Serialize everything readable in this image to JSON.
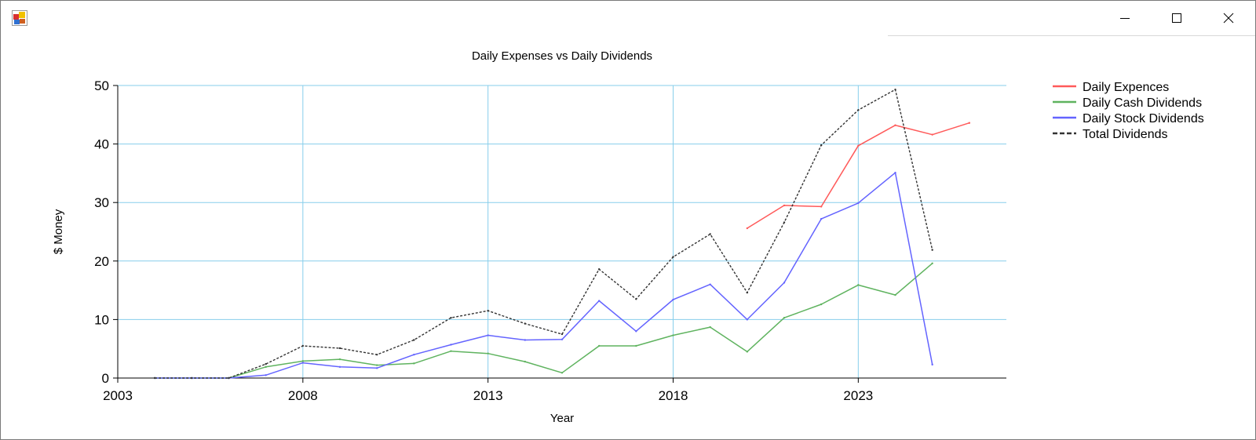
{
  "window": {
    "icon": "app-icon",
    "controls": [
      "minimize-icon",
      "maximize-icon",
      "close-icon"
    ]
  },
  "chart_data": {
    "type": "line",
    "title": "Daily Expenses vs Daily Dividends",
    "xlabel": "Year",
    "ylabel": "$ Money",
    "xlim": [
      2003,
      2027
    ],
    "ylim": [
      0,
      50
    ],
    "xticks": [
      2003,
      2008,
      2013,
      2018,
      2023
    ],
    "yticks": [
      0,
      10,
      20,
      30,
      40,
      50
    ],
    "grid": true,
    "grid_color": "#87ceeb",
    "legend_position": "top-right",
    "series": [
      {
        "name": "Daily Expences",
        "color": "#ff5a5a",
        "dashed": false,
        "x": [
          2020,
          2021,
          2022,
          2023,
          2024,
          2025,
          2026
        ],
        "values": [
          25.6,
          29.5,
          29.3,
          39.7,
          43.2,
          41.6,
          43.6
        ]
      },
      {
        "name": "Daily Cash Dividends",
        "color": "#5fb35f",
        "dashed": false,
        "x": [
          2004,
          2005,
          2006,
          2007,
          2008,
          2009,
          2010,
          2011,
          2012,
          2013,
          2014,
          2015,
          2016,
          2017,
          2018,
          2019,
          2020,
          2021,
          2022,
          2023,
          2024,
          2025
        ],
        "values": [
          0,
          0,
          0,
          1.9,
          2.9,
          3.2,
          2.2,
          2.5,
          4.6,
          4.2,
          2.8,
          0.9,
          5.5,
          5.5,
          7.3,
          8.7,
          4.5,
          10.3,
          12.6,
          15.9,
          14.2,
          19.6
        ]
      },
      {
        "name": "Daily Stock Dividends",
        "color": "#6464ff",
        "dashed": false,
        "x": [
          2004,
          2005,
          2006,
          2007,
          2008,
          2009,
          2010,
          2011,
          2012,
          2013,
          2014,
          2015,
          2016,
          2017,
          2018,
          2019,
          2020,
          2021,
          2022,
          2023,
          2024,
          2025
        ],
        "values": [
          0,
          0,
          0,
          0.5,
          2.6,
          1.9,
          1.7,
          4.0,
          5.7,
          7.3,
          6.5,
          6.6,
          13.2,
          8.0,
          13.4,
          16.0,
          10.0,
          16.3,
          27.2,
          29.9,
          35.1,
          2.3
        ]
      },
      {
        "name": "Total Dividends",
        "color": "#333333",
        "dashed": true,
        "x": [
          2004,
          2005,
          2006,
          2007,
          2008,
          2009,
          2010,
          2011,
          2012,
          2013,
          2014,
          2015,
          2016,
          2017,
          2018,
          2019,
          2020,
          2021,
          2022,
          2023,
          2024,
          2025
        ],
        "values": [
          0,
          0,
          0,
          2.4,
          5.5,
          5.1,
          4.0,
          6.5,
          10.3,
          11.5,
          9.3,
          7.5,
          18.6,
          13.5,
          20.7,
          24.6,
          14.6,
          26.6,
          39.8,
          45.8,
          49.3,
          21.9
        ]
      }
    ]
  }
}
